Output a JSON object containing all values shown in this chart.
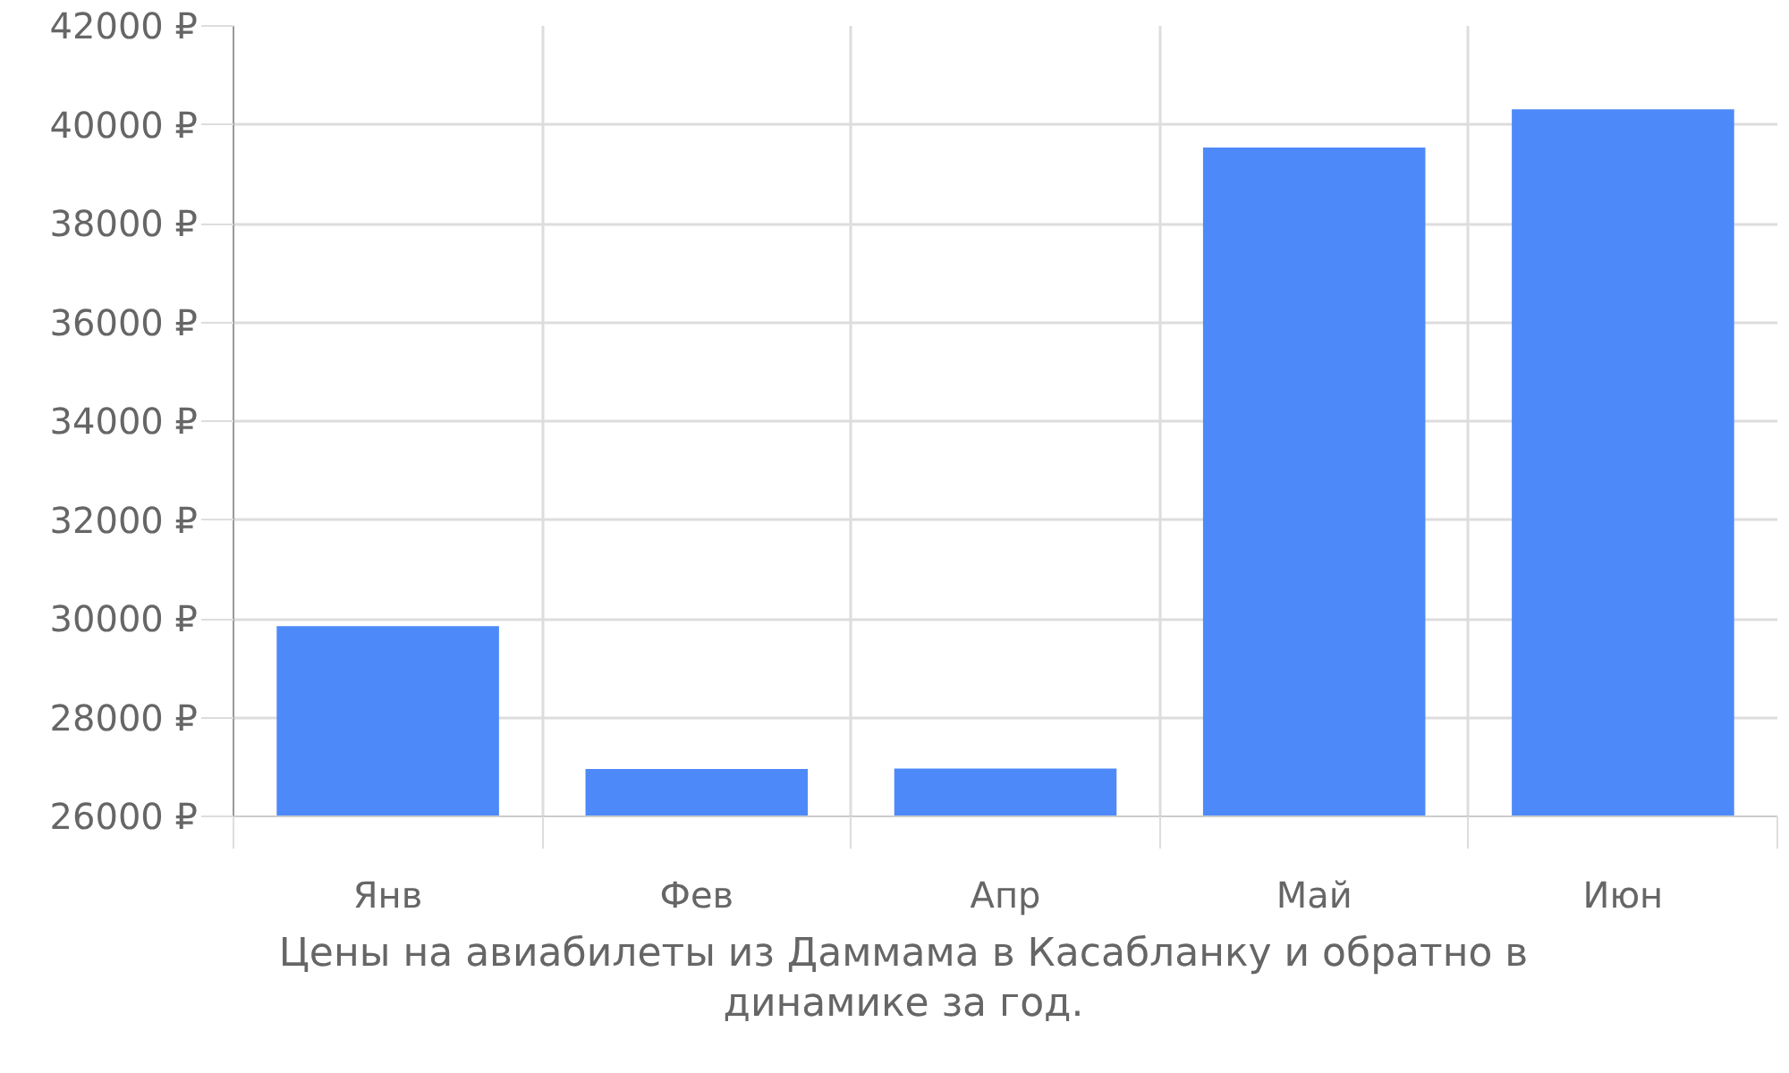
{
  "chart_data": {
    "type": "bar",
    "categories": [
      "Янв",
      "Фев",
      "Апр",
      "Май",
      "Июн"
    ],
    "values": [
      29850,
      26960,
      26970,
      39540,
      40310
    ],
    "color": "#4d89f9",
    "ylim": [
      26000,
      42000
    ],
    "yticks": [
      {
        "value": 26000,
        "label": "26000 ₽"
      },
      {
        "value": 28000,
        "label": "28000 ₽"
      },
      {
        "value": 30000,
        "label": "30000 ₽"
      },
      {
        "value": 32000,
        "label": "32000 ₽"
      },
      {
        "value": 34000,
        "label": "34000 ₽"
      },
      {
        "value": 36000,
        "label": "36000 ₽"
      },
      {
        "value": 38000,
        "label": "38000 ₽"
      },
      {
        "value": 40000,
        "label": "40000 ₽"
      },
      {
        "value": 42000,
        "label": "42000 ₽"
      }
    ],
    "grid": true,
    "annotations": [
      "Цены на авиабилеты из Даммама в Касабланку и обратно в динамике за год."
    ]
  }
}
